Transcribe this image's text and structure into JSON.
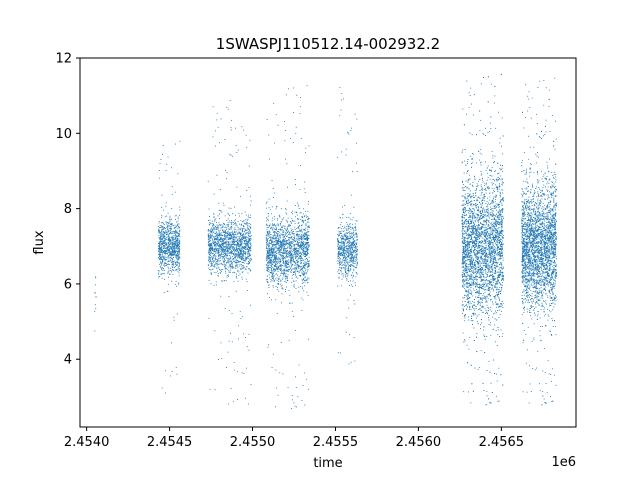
{
  "chart_data": {
    "type": "scatter",
    "title": "1SWASPJ110512.14-002932.2",
    "xlabel": "time",
    "ylabel": "flux",
    "x_offset_label": "1e6",
    "xlim": [
      2453960,
      2456950
    ],
    "ylim": [
      2.2,
      12.0
    ],
    "x_ticks": [
      2454000,
      2454500,
      2455000,
      2455500,
      2456000,
      2456500
    ],
    "x_tick_labels": [
      "2.4540",
      "2.4545",
      "2.4550",
      "2.4555",
      "2.4560",
      "2.4565"
    ],
    "y_ticks": [
      4,
      6,
      8,
      10,
      12
    ],
    "y_tick_labels": [
      "4",
      "6",
      "8",
      "10",
      "12"
    ],
    "grid": false,
    "legend": "none",
    "color": "#1f77b4",
    "series": [
      {
        "seasons": [
          {
            "x_start": 2454045,
            "x_end": 2454055,
            "y_center": 5.6,
            "y_spread": 0.6,
            "y_min": 4.7,
            "y_max": 6.2,
            "n": 12
          },
          {
            "x_start": 2454430,
            "x_end": 2454560,
            "y_center": 7.0,
            "y_spread": 0.35,
            "y_min": 3.0,
            "y_max": 9.9,
            "n": 900
          },
          {
            "x_start": 2454730,
            "x_end": 2454990,
            "y_center": 7.0,
            "y_spread": 0.35,
            "y_min": 2.8,
            "y_max": 10.9,
            "n": 1600
          },
          {
            "x_start": 2455080,
            "x_end": 2455340,
            "y_center": 6.9,
            "y_spread": 0.45,
            "y_min": 2.6,
            "y_max": 11.3,
            "n": 1800
          },
          {
            "x_start": 2455510,
            "x_end": 2455630,
            "y_center": 6.9,
            "y_spread": 0.35,
            "y_min": 3.8,
            "y_max": 11.4,
            "n": 700
          },
          {
            "x_start": 2456260,
            "x_end": 2456510,
            "y_center": 7.0,
            "y_spread": 0.9,
            "y_min": 2.7,
            "y_max": 11.6,
            "n": 3500
          },
          {
            "x_start": 2456620,
            "x_end": 2456830,
            "y_center": 7.0,
            "y_spread": 0.8,
            "y_min": 2.7,
            "y_max": 11.5,
            "n": 3000
          }
        ]
      }
    ]
  }
}
